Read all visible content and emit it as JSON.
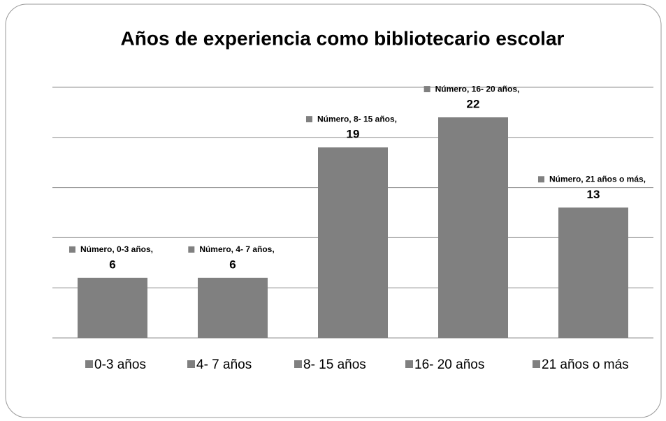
{
  "chart_data": {
    "type": "bar",
    "title": "Años de experiencia como bibliotecario escolar",
    "categories": [
      "0-3 años",
      "4- 7 años",
      "8- 15 años",
      "16- 20 años",
      "21  años o más"
    ],
    "series": [
      {
        "name": "Número",
        "color": "#808080",
        "values": [
          6,
          6,
          19,
          22,
          13
        ]
      }
    ],
    "point_labels": [
      "Número, 0-3 años,",
      "Número, 4- 7 años,",
      "Número, 8- 15 años,",
      "Número, 16- 20 años,",
      "Número, 21  años o más,"
    ],
    "ylim": [
      0,
      25
    ],
    "yticks": [
      0,
      5,
      10,
      15,
      20,
      25
    ],
    "grid": true,
    "legend": "bottom"
  }
}
